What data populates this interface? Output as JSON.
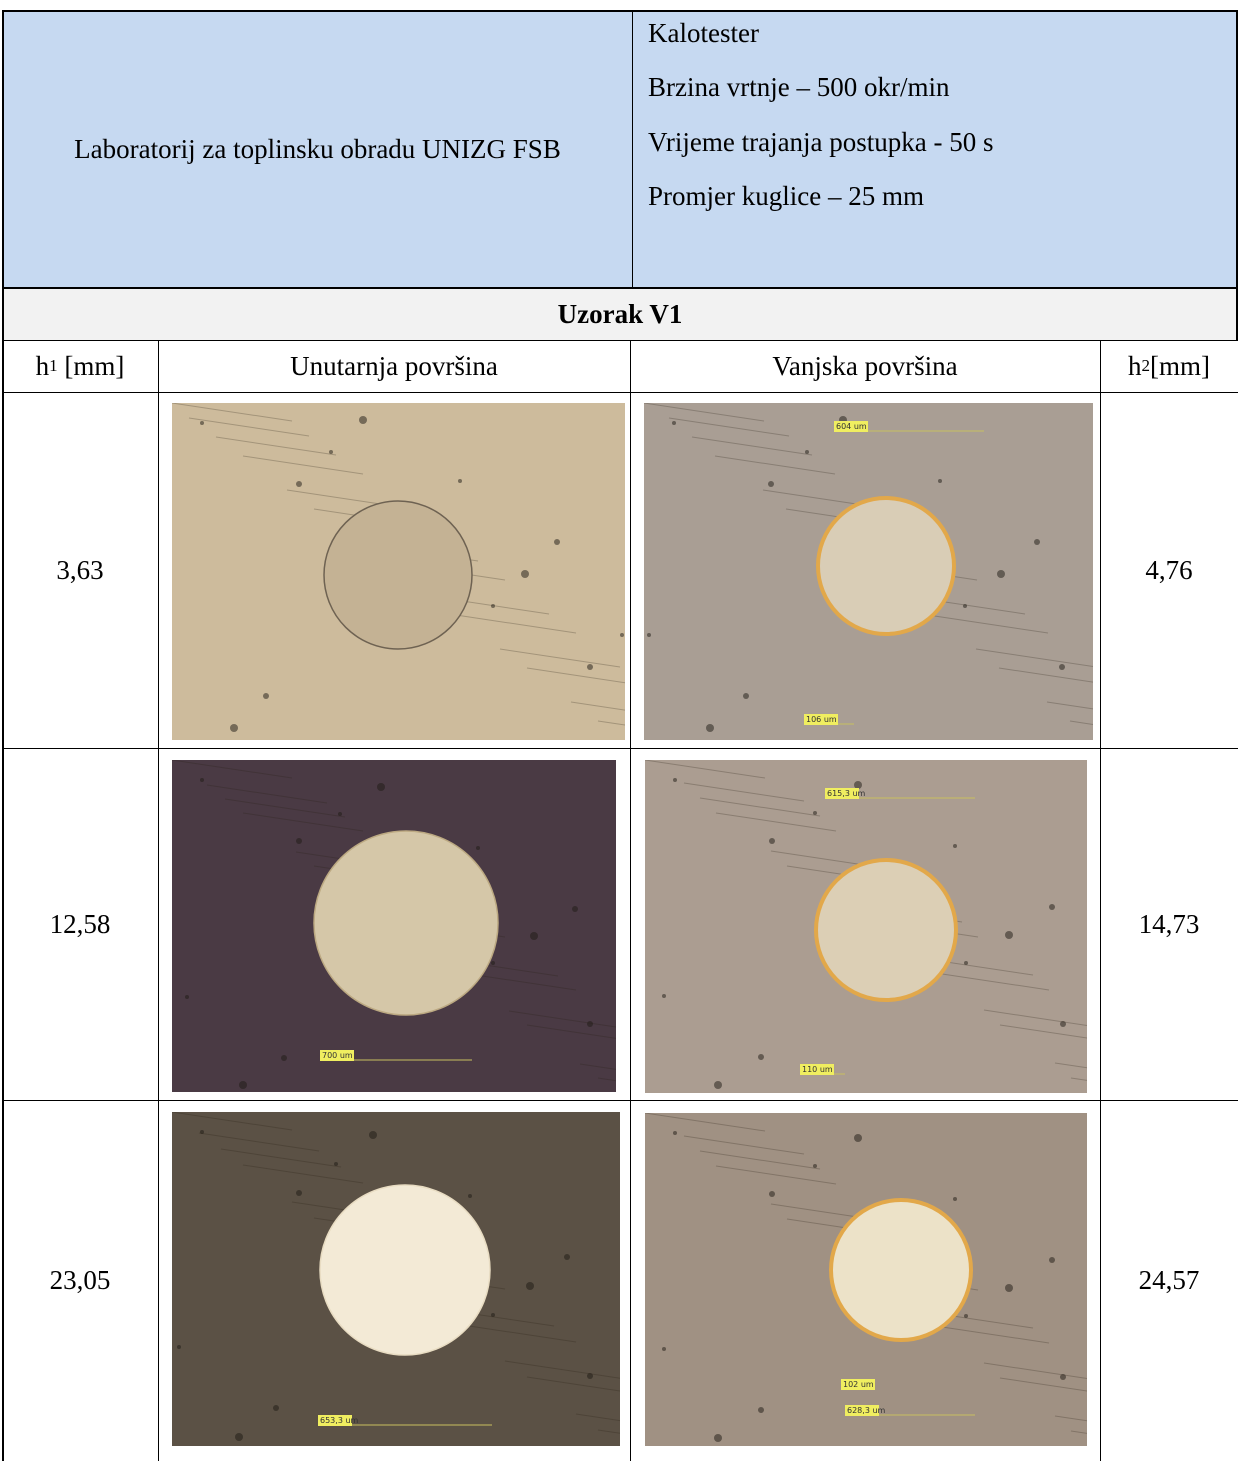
{
  "header": {
    "lab": "Laboratorij za toplinsku obradu UNIZG FSB",
    "params": [
      "Kalotester",
      "Brzina vrtnje – 500 okr/min",
      "Vrijeme trajanja postupka - 50 s",
      "Promjer kuglice – 25 mm"
    ]
  },
  "sample": "Uzorak V1",
  "columns": {
    "h1": {
      "symbol": "h",
      "subscript": "1",
      "unit": "[mm]"
    },
    "inner": "Unutarnja površina",
    "outer": "Vanjska površina",
    "h2": {
      "symbol": "h",
      "subscript": "2",
      "unit": "[mm]"
    }
  },
  "rows": [
    {
      "h1": "3,63",
      "inner_labels": [],
      "outer_labels": [
        "604 um",
        "106 um"
      ],
      "h2": "4,76"
    },
    {
      "h1": "12,58",
      "inner_labels": [
        "700 um"
      ],
      "outer_labels": [
        "615,3 um",
        "110 um"
      ],
      "h2": "14,73"
    },
    {
      "h1": "23,05",
      "inner_labels": [
        "653,3 um"
      ],
      "outer_labels": [
        "102 um",
        "628,3 um"
      ],
      "h2": "24,57"
    }
  ]
}
